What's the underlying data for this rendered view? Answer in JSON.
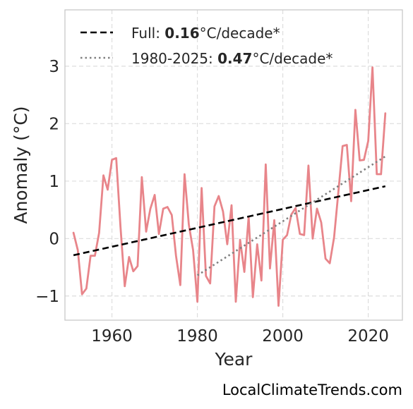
{
  "chart_data": {
    "type": "line",
    "xlabel": "Year",
    "ylabel": "Anomaly (°C)",
    "xlim": [
      1949,
      2028
    ],
    "ylim": [
      -1.42,
      3.98
    ],
    "xticks": [
      1960,
      1980,
      2000,
      2020
    ],
    "yticks": [
      -1,
      0,
      1,
      2,
      3
    ],
    "ytick_labels": [
      "−1",
      "0",
      "1",
      "2",
      "3"
    ],
    "grid": true,
    "legend_position": "top-left",
    "series": [
      {
        "name": "",
        "color": "#e8858a",
        "style": "solid",
        "x": [
          1951,
          1952,
          1953,
          1954,
          1955,
          1956,
          1957,
          1958,
          1959,
          1960,
          1961,
          1962,
          1963,
          1964,
          1965,
          1966,
          1967,
          1968,
          1969,
          1970,
          1971,
          1972,
          1973,
          1974,
          1975,
          1976,
          1977,
          1978,
          1979,
          1980,
          1981,
          1982,
          1983,
          1984,
          1985,
          1986,
          1987,
          1988,
          1989,
          1990,
          1991,
          1992,
          1993,
          1994,
          1995,
          1996,
          1997,
          1998,
          1999,
          2000,
          2001,
          2002,
          2003,
          2004,
          2005,
          2006,
          2007,
          2008,
          2009,
          2010,
          2011,
          2012,
          2013,
          2014,
          2015,
          2016,
          2017,
          2018,
          2019,
          2020,
          2021,
          2022,
          2023,
          2024
        ],
        "y": [
          0.1,
          -0.2,
          -0.97,
          -0.87,
          -0.3,
          -0.3,
          0.1,
          1.1,
          0.85,
          1.37,
          1.4,
          0.2,
          -0.83,
          -0.32,
          -0.57,
          -0.48,
          1.07,
          0.12,
          0.52,
          0.76,
          0.08,
          0.52,
          0.55,
          0.41,
          -0.3,
          -0.81,
          1.12,
          0.24,
          -0.2,
          -1.1,
          0.88,
          -0.65,
          -0.78,
          0.56,
          0.74,
          0.47,
          -0.1,
          0.58,
          -1.1,
          -0.02,
          -0.58,
          0.38,
          -1.02,
          -0.1,
          -0.73,
          1.29,
          -0.52,
          0.32,
          -1.17,
          -0.02,
          0.06,
          0.42,
          0.53,
          0.08,
          0.06,
          1.27,
          0.0,
          0.52,
          0.28,
          -0.35,
          -0.43,
          0.02,
          0.8,
          1.61,
          1.63,
          0.65,
          2.24,
          1.36,
          1.37,
          1.7,
          2.98,
          1.12,
          1.12,
          2.18
        ]
      }
    ],
    "trendlines": [
      {
        "label_prefix": "Full: ",
        "label_value": "0.16",
        "label_suffix": "°C/decade*",
        "color": "#000000",
        "style": "dashed",
        "x": [
          1951,
          2024
        ],
        "y": [
          -0.29,
          0.91
        ]
      },
      {
        "label_prefix": "1980-2025: ",
        "label_value": "0.47",
        "label_suffix": "°C/decade*",
        "color": "#808080",
        "style": "dotted",
        "x": [
          1980,
          2024
        ],
        "y": [
          -0.64,
          1.43
        ]
      }
    ]
  },
  "watermark": "LocalClimateTrends.com"
}
